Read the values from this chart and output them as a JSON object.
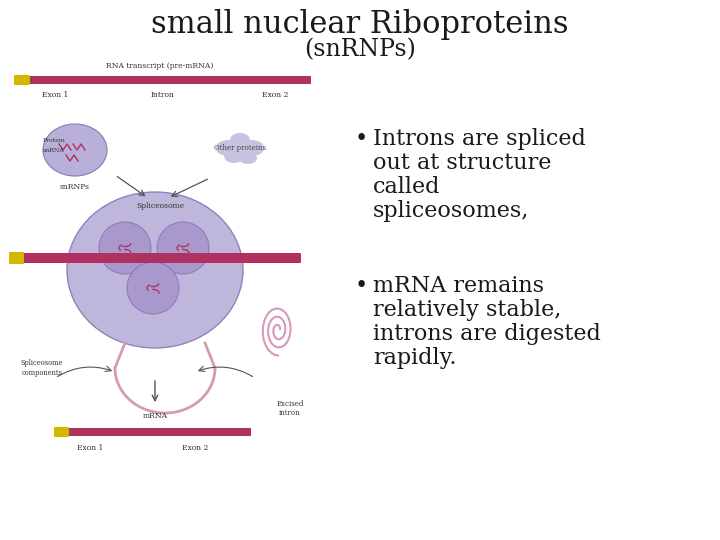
{
  "title_line1": "small nuclear Riboproteins",
  "title_line2": "(snRNPs)",
  "bullet1_lines": [
    "Introns are spliced",
    "out at structure",
    "called",
    "spliceosomes,"
  ],
  "bullet2_lines": [
    "mRNA remains",
    "relatively stable,",
    "introns are digested",
    "rapidly."
  ],
  "bg_color": "#ffffff",
  "title_color": "#1a1a1a",
  "text_color": "#1a1a1a",
  "title_fontsize": 22,
  "subtitle_fontsize": 17,
  "bullet_fontsize": 16,
  "pink_color": "#b03060",
  "purple_color": "#8878b8",
  "light_purple": "#b8b0d8",
  "lighter_purple": "#c8c2e2",
  "yellow_color": "#d4b800",
  "pink_light": "#d899b8"
}
